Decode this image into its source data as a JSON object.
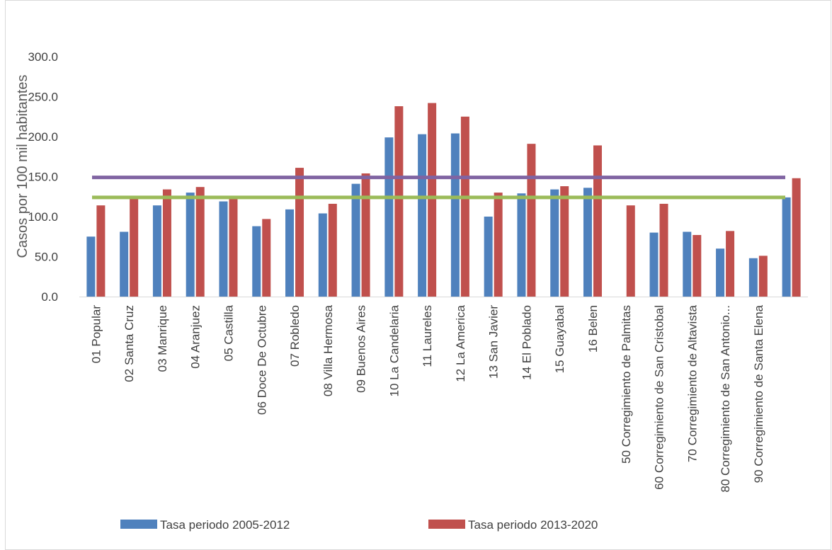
{
  "chart_data": {
    "type": "bar",
    "ylabel": "Casos por 100 mil habitantes",
    "xlabel": "",
    "ylim": [
      0,
      300
    ],
    "y_ticks": [
      "0.0",
      "50.0",
      "100.0",
      "150.0",
      "200.0",
      "250.0",
      "300.0"
    ],
    "grid": false,
    "legend_position": "bottom",
    "categories": [
      "01 Popular",
      "02 Santa Cruz",
      "03 Manrique",
      "04 Aranjuez",
      "05 Castilla",
      "06 Doce De Octubre",
      "07 Robledo",
      "08 Villa Hermosa",
      "09 Buenos Aires",
      "10 La Candelaria",
      "11 Laureles",
      "12 La America",
      "13 San Javier",
      "14 El Poblado",
      "15 Guayabal",
      "16 Belen",
      "50 Corregimiento de Palmitas",
      "60 Corregimiento de San Cristobal",
      "70 Corregimiento de Altavista",
      "80 Corregimiento de San Antonio...",
      "90 Corregimiento de Santa Elena",
      ""
    ],
    "series": [
      {
        "name": "Tasa periodo 2005-2012",
        "color": "#4F81BD",
        "values": [
          75,
          81,
          114,
          130,
          119,
          88,
          109,
          104,
          141,
          199,
          203,
          204,
          100,
          129,
          134,
          136,
          0,
          80,
          81,
          60,
          48,
          124
        ]
      },
      {
        "name": "Tasa periodo 2013-2020",
        "color": "#C0504D",
        "values": [
          114,
          123,
          134,
          137,
          122,
          97,
          161,
          116,
          154,
          238,
          242,
          225,
          130,
          191,
          138,
          189,
          114,
          116,
          77,
          82,
          51,
          148
        ]
      }
    ],
    "reference_lines": [
      {
        "value": 149,
        "color": "#8064A2"
      },
      {
        "value": 124,
        "color": "#9BBB59"
      }
    ]
  }
}
